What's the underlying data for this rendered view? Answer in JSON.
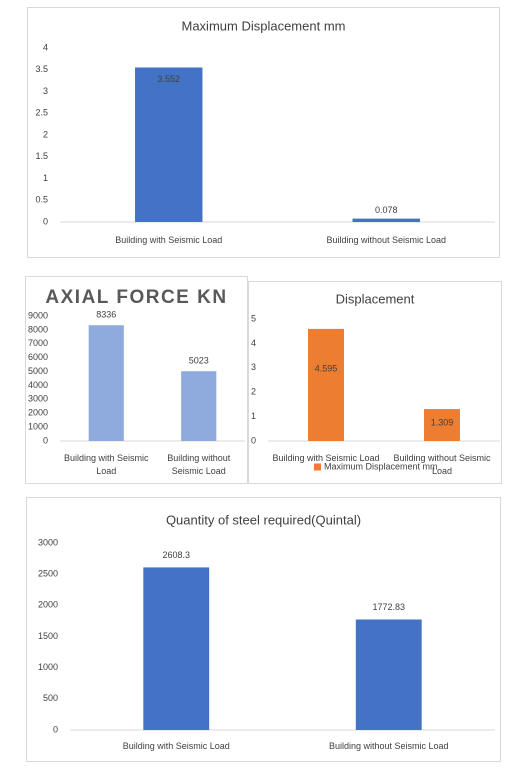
{
  "chart_data": [
    {
      "type": "bar",
      "title": "Maximum Displacement  mm",
      "categories": [
        "Building with Seismic Load",
        "Building without Seismic Load"
      ],
      "values": [
        3.552,
        0.078
      ],
      "color": "#4472c4",
      "ylim": [
        0,
        4
      ],
      "yticks": [
        0,
        0.5,
        1,
        1.5,
        2,
        2.5,
        3,
        3.5,
        4
      ]
    },
    {
      "type": "bar",
      "title": "AXIAL FORCE KN",
      "categories": [
        "Building with Seismic Load",
        "Building without Seismic Load"
      ],
      "values": [
        8336,
        5023
      ],
      "color": "#8faadc",
      "ylim": [
        0,
        9000
      ],
      "yticks": [
        0,
        1000,
        2000,
        3000,
        4000,
        5000,
        6000,
        7000,
        8000,
        9000
      ]
    },
    {
      "type": "bar",
      "title": "Displacement",
      "categories": [
        "Building with Seismic Load",
        "Building without Seismic Load"
      ],
      "series": [
        {
          "name": "Maximum Displacement mm",
          "color": "#ed7d31",
          "values": [
            4.595,
            1.309
          ]
        }
      ],
      "ylim": [
        0,
        5
      ],
      "yticks": [
        0,
        1,
        2,
        3,
        4,
        5
      ]
    },
    {
      "type": "bar",
      "title": "Quantity of steel required(Quintal)",
      "categories": [
        "Building with Seismic Load",
        "Building without Seismic Load"
      ],
      "values": [
        2608.3,
        1772.83
      ],
      "color": "#4472c4",
      "ylim": [
        0,
        3000
      ],
      "yticks": [
        0,
        500,
        1000,
        1500,
        2000,
        2500,
        3000
      ]
    }
  ]
}
